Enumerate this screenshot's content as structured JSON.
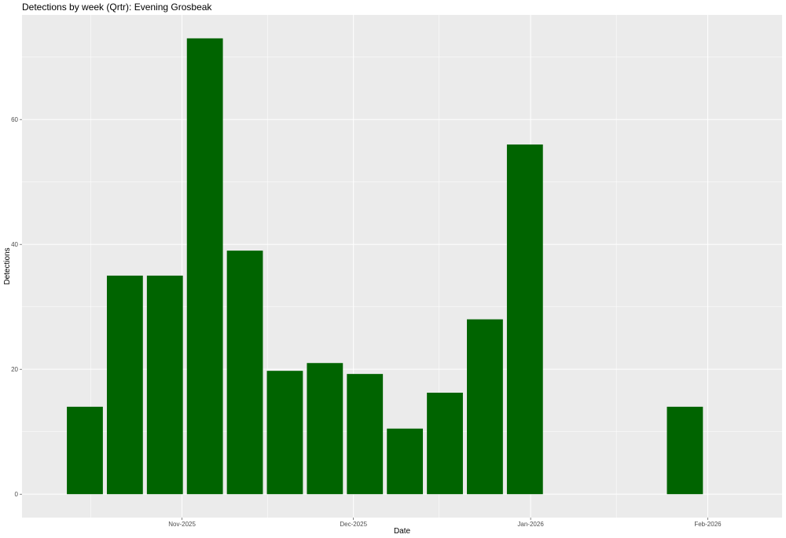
{
  "chart_data": {
    "type": "bar",
    "title": "Detections by week (Qrtr): Evening Grosbeak",
    "xlabel": "Date",
    "ylabel": "Detections",
    "x": [
      "2025-10-15",
      "2025-10-22",
      "2025-10-29",
      "2025-11-05",
      "2025-11-12",
      "2025-11-19",
      "2025-11-26",
      "2025-12-03",
      "2025-12-10",
      "2025-12-17",
      "2025-12-24",
      "2025-12-31",
      "2026-01-28"
    ],
    "values": [
      14,
      35,
      35,
      73,
      39,
      19.75,
      21,
      19.25,
      10.5,
      16.25,
      28,
      56,
      14
    ],
    "xlim": [
      "2025-10-04",
      "2026-02-14"
    ],
    "ylim": [
      -3.75,
      76.75
    ],
    "yticks": [
      0,
      20,
      40,
      60
    ],
    "xticks": [
      {
        "date": "2025-11-01",
        "label": "Nov-2025"
      },
      {
        "date": "2025-12-01",
        "label": "Dec-2025"
      },
      {
        "date": "2026-01-01",
        "label": "Jan-2026"
      },
      {
        "date": "2026-02-01",
        "label": "Feb-2026"
      }
    ],
    "grid": true,
    "colors": {
      "bar": "#006400",
      "panel": "#ebebeb",
      "grid": "#ffffff"
    }
  }
}
